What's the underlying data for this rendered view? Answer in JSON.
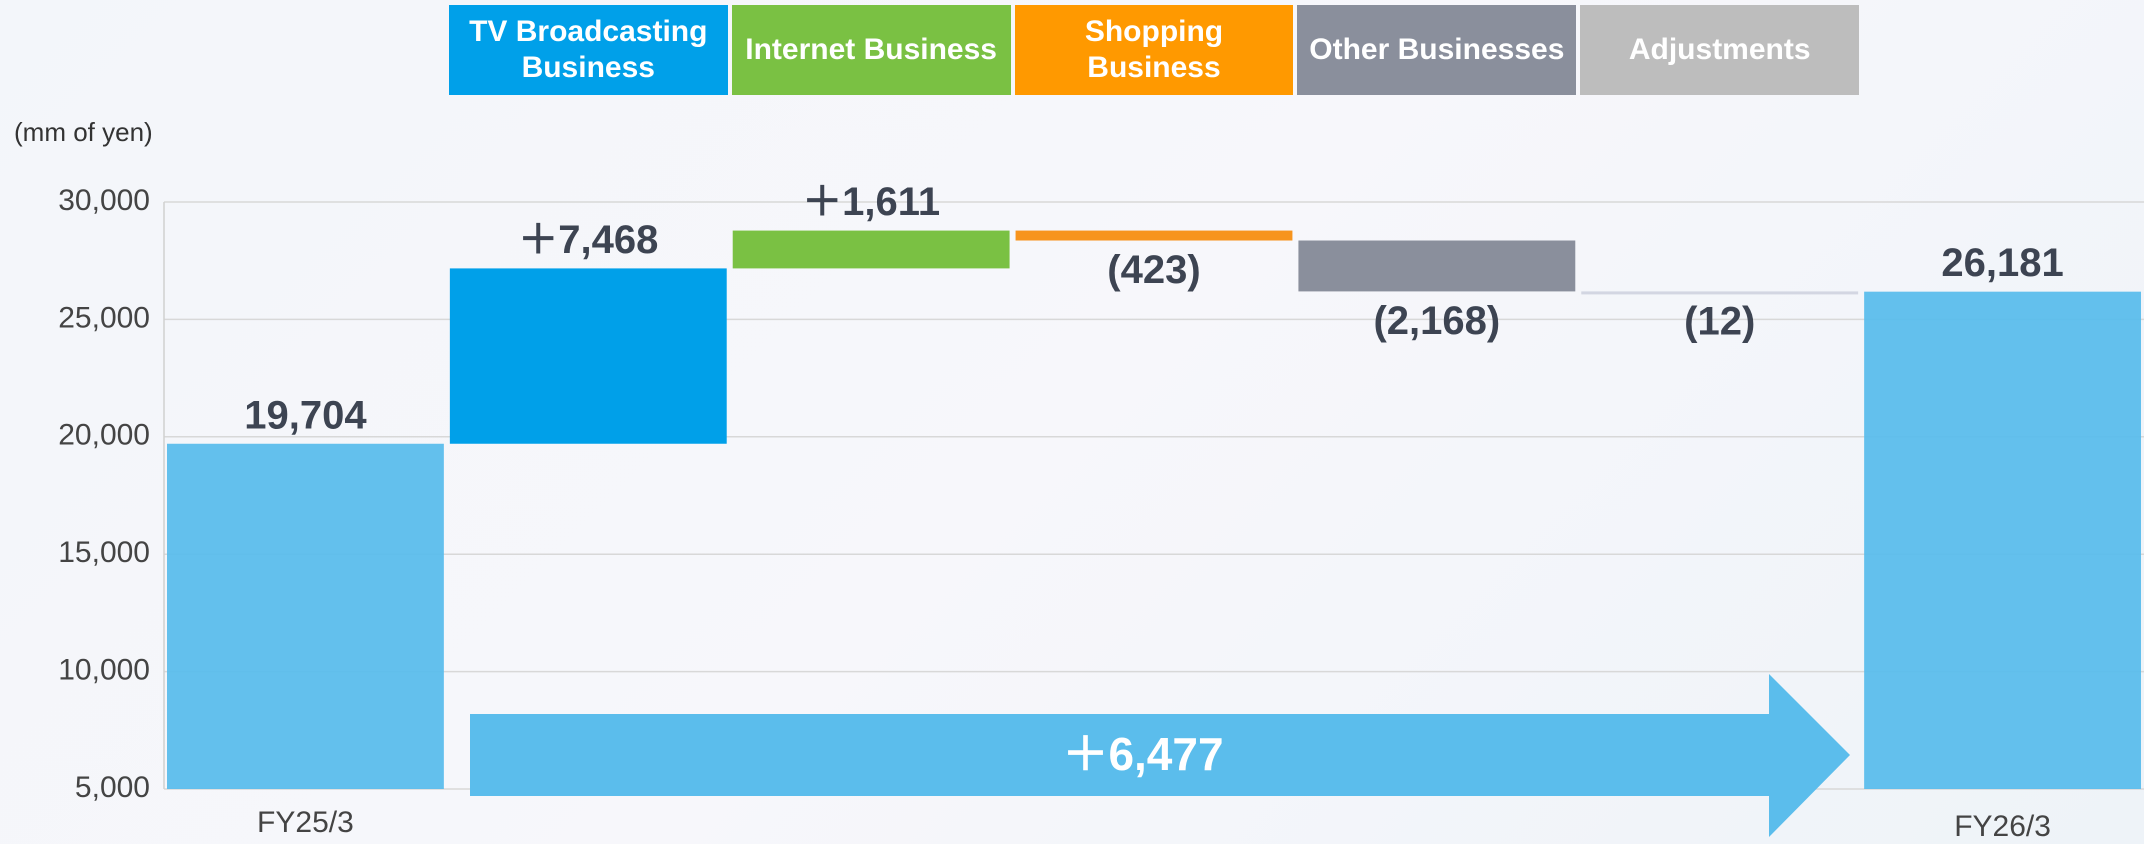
{
  "chart_data": {
    "type": "waterfall",
    "unit_label": "(mm of yen)",
    "categories": [
      "FY25/3",
      "TV Broadcasting Business",
      "Internet Business",
      "Shopping Business",
      "Other Businesses",
      "Adjustments",
      "FY26/3"
    ],
    "values": [
      19704,
      7468,
      1611,
      -423,
      -2168,
      -12,
      26181
    ],
    "value_labels": [
      "19,704",
      "＋7,468",
      "＋1,611",
      "(423)",
      "(2,168)",
      "(12)",
      "26,181"
    ],
    "colors": [
      "#5bbdec",
      "#00a0e9",
      "#7ac143",
      "#f7941d",
      "#8a8f9c",
      "#d3d6e2",
      "#5bbdec"
    ],
    "header_colors": [
      null,
      "#00a0e9",
      "#7ac143",
      "#ff9900",
      "#8a8f9c",
      "#bdbdbd",
      null
    ],
    "annotation": "＋6,477",
    "ylim": [
      5000,
      30000
    ],
    "yticks": [
      {
        "value": 5000,
        "label": "5,000"
      },
      {
        "value": 10000,
        "label": "10,000"
      },
      {
        "value": 15000,
        "label": "15,000"
      },
      {
        "value": 20000,
        "label": "20,000"
      },
      {
        "value": 25000,
        "label": "25,000"
      },
      {
        "value": 30000,
        "label": "30,000"
      }
    ],
    "grid": true
  }
}
